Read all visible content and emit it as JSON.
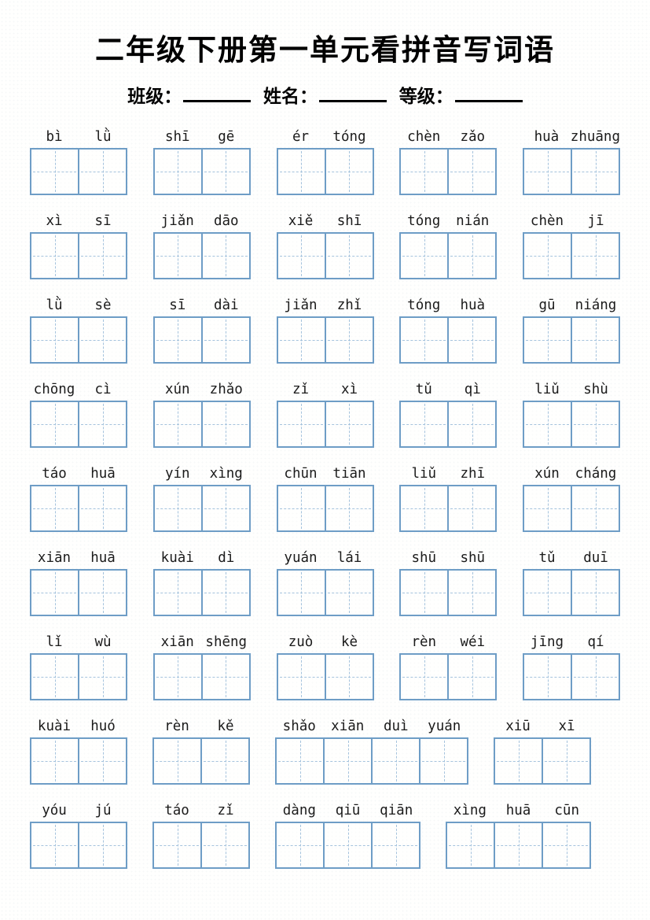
{
  "title": "二年级下册第一单元看拼音写词语",
  "header": {
    "fields": [
      {
        "label": "班级："
      },
      {
        "label": "姓名："
      },
      {
        "label": "等级："
      }
    ]
  },
  "colors": {
    "box_border": "#6e9dc6",
    "box_dashed": "#a5c3dd",
    "text": "#1b1b1b",
    "title_text": "#000000",
    "page_bg": "#fffffe"
  },
  "rows": [
    {
      "groups": [
        {
          "syllables": [
            "bì",
            "lǜ"
          ]
        },
        {
          "syllables": [
            "shī",
            "gē"
          ]
        },
        {
          "syllables": [
            "ér",
            "tóng"
          ]
        },
        {
          "syllables": [
            "chèn",
            "zǎo"
          ]
        },
        {
          "syllables": [
            "huà",
            "zhuāng"
          ]
        }
      ]
    },
    {
      "groups": [
        {
          "syllables": [
            "xì",
            "sī"
          ]
        },
        {
          "syllables": [
            "jiǎn",
            "dāo"
          ]
        },
        {
          "syllables": [
            "xiě",
            "shī"
          ]
        },
        {
          "syllables": [
            "tóng",
            "nián"
          ]
        },
        {
          "syllables": [
            "chèn",
            "jī"
          ]
        }
      ]
    },
    {
      "groups": [
        {
          "syllables": [
            "lǜ",
            "sè"
          ]
        },
        {
          "syllables": [
            "sī",
            "dài"
          ]
        },
        {
          "syllables": [
            "jiǎn",
            "zhǐ"
          ]
        },
        {
          "syllables": [
            "tóng",
            "huà"
          ]
        },
        {
          "syllables": [
            "gū",
            "niáng"
          ]
        }
      ]
    },
    {
      "groups": [
        {
          "syllables": [
            "chōng",
            "cì"
          ]
        },
        {
          "syllables": [
            "xún",
            "zhǎo"
          ]
        },
        {
          "syllables": [
            "zǐ",
            "xì"
          ]
        },
        {
          "syllables": [
            "tǔ",
            "qì"
          ]
        },
        {
          "syllables": [
            "liǔ",
            "shù"
          ]
        }
      ]
    },
    {
      "groups": [
        {
          "syllables": [
            "táo",
            "huā"
          ]
        },
        {
          "syllables": [
            "yín",
            "xìng"
          ]
        },
        {
          "syllables": [
            "chūn",
            "tiān"
          ]
        },
        {
          "syllables": [
            "liǔ",
            "zhī"
          ]
        },
        {
          "syllables": [
            "xún",
            "cháng"
          ]
        }
      ]
    },
    {
      "groups": [
        {
          "syllables": [
            "xiān",
            "huā"
          ]
        },
        {
          "syllables": [
            "kuài",
            "dì"
          ]
        },
        {
          "syllables": [
            "yuán",
            "lái"
          ]
        },
        {
          "syllables": [
            "shū",
            "shū"
          ]
        },
        {
          "syllables": [
            "tǔ",
            "duī"
          ]
        }
      ]
    },
    {
      "groups": [
        {
          "syllables": [
            "lǐ",
            "wù"
          ]
        },
        {
          "syllables": [
            "xiān",
            "shēng"
          ]
        },
        {
          "syllables": [
            "zuò",
            "kè"
          ]
        },
        {
          "syllables": [
            "rèn",
            "wéi"
          ]
        },
        {
          "syllables": [
            "jīng",
            "qí"
          ]
        }
      ]
    },
    {
      "groups": [
        {
          "syllables": [
            "kuài",
            "huó"
          ]
        },
        {
          "syllables": [
            "rèn",
            "kě"
          ]
        },
        {
          "syllables": [
            "shǎo",
            "xiān",
            "duì",
            "yuán"
          ]
        },
        {
          "syllables": [
            "xiū",
            "xī"
          ]
        }
      ]
    },
    {
      "groups": [
        {
          "syllables": [
            "yóu",
            "jú"
          ]
        },
        {
          "syllables": [
            "táo",
            "zǐ"
          ]
        },
        {
          "syllables": [
            "dàng",
            "qiū",
            "qiān"
          ]
        },
        {
          "syllables": [
            "xìng",
            "huā",
            "cūn"
          ]
        }
      ]
    }
  ]
}
